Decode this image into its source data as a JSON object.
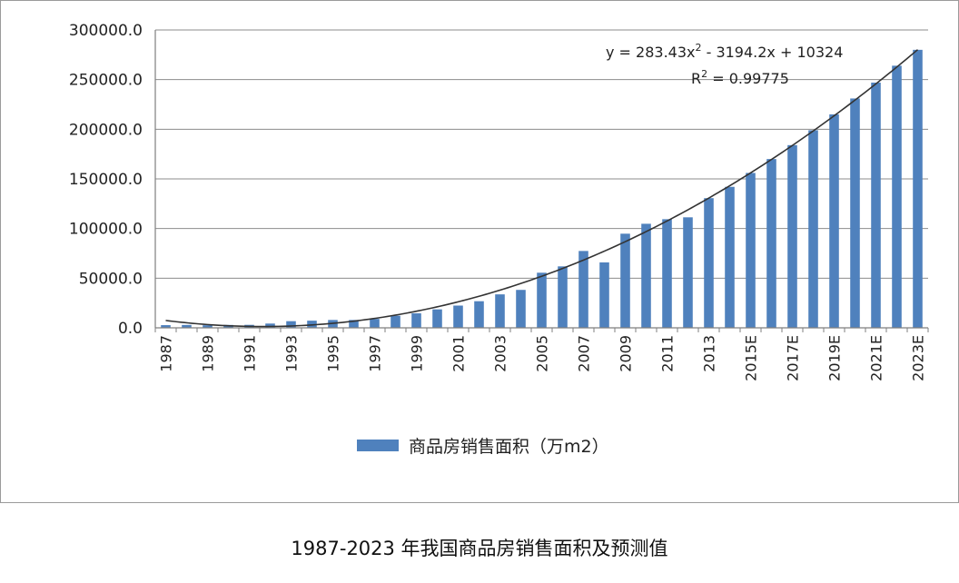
{
  "caption": "1987-2023 年我国商品房销售面积及预测值",
  "chart_data": {
    "type": "bar",
    "title": "",
    "xlabel": "",
    "ylabel": "",
    "ylim": [
      0,
      300000
    ],
    "y_ticks": [
      "0.0",
      "50000.0",
      "100000.0",
      "150000.0",
      "200000.0",
      "250000.0",
      "300000.0"
    ],
    "y_tick_values": [
      0,
      50000,
      100000,
      150000,
      200000,
      250000,
      300000
    ],
    "categories": [
      "1987",
      "1988",
      "1989",
      "1990",
      "1991",
      "1992",
      "1993",
      "1994",
      "1995",
      "1996",
      "1997",
      "1998",
      "1999",
      "2000",
      "2001",
      "2002",
      "2003",
      "2004",
      "2005",
      "2006",
      "2007",
      "2008",
      "2009",
      "2010",
      "2011",
      "2012",
      "2013",
      "2014",
      "2015E",
      "2016E",
      "2017E",
      "2018E",
      "2019E",
      "2020E",
      "2021E",
      "2022E",
      "2023E"
    ],
    "x_tick_labels": [
      "1987",
      "1989",
      "1991",
      "1993",
      "1995",
      "1997",
      "1999",
      "2001",
      "2003",
      "2005",
      "2007",
      "2009",
      "2011",
      "2013",
      "2015E",
      "2017E",
      "2019E",
      "2021E",
      "2023E"
    ],
    "series": [
      {
        "name": "商品房销售面积（万m2）",
        "color": "#4f81bd",
        "values": [
          2700,
          2900,
          2600,
          2900,
          3000,
          4300,
          6700,
          7200,
          7900,
          7900,
          9000,
          12200,
          14600,
          18600,
          22400,
          26800,
          33700,
          38200,
          55500,
          61900,
          77400,
          65900,
          94800,
          104800,
          109400,
          111300,
          130600,
          142000,
          156000,
          170000,
          184000,
          199000,
          215000,
          231000,
          247000,
          264000,
          280000
        ]
      }
    ],
    "trendline": {
      "type": "polynomial",
      "color": "#333333",
      "equation": "y = 283.43x² - 3194.2x + 10324",
      "equation_parts": [
        "y = 283.43x",
        "2",
        " - 3194.2x + 10324"
      ],
      "r2_parts": [
        "R",
        "2",
        " = 0.99775"
      ],
      "a": 283.43,
      "b": -3194.2,
      "c": 10324
    },
    "legend": {
      "position": "bottom",
      "label": "商品房销售面积（万m2）"
    },
    "grid": "horizontal"
  }
}
